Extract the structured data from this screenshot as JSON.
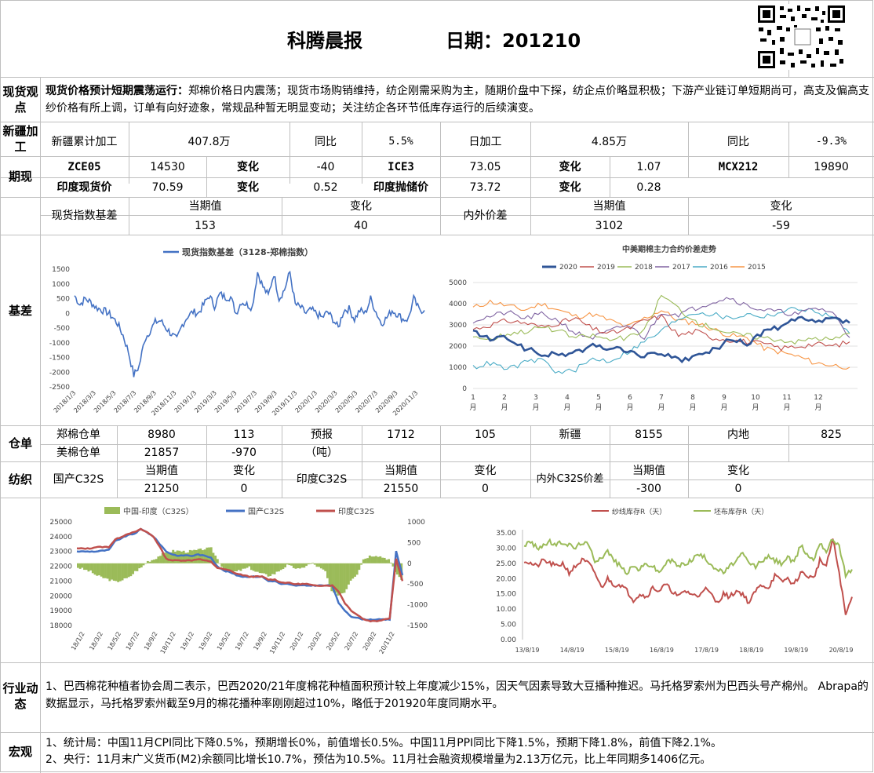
{
  "header": {
    "title": "科腾晨报",
    "date_label": "日期：201210"
  },
  "spot": {
    "label": "现货观点",
    "headline": "现货价格预计短期震荡运行：",
    "text": "郑棉价格日内震荡；现货市场购销维持，纺企刚需采购为主，随期价盘中下探，纺企点价略显积极；下游产业链订单短期尚可，高支及偏高支纱价格有所上调，订单有向好迹象，常规品种暂无明显变动；关注纺企各环节低库存运行的后续演变。"
  },
  "xinjiang": {
    "label": "新疆加工",
    "cum_label": "新疆累计加工",
    "cum_value": "407.8万",
    "yoy_label": "同比",
    "cum_yoy": "5.5%",
    "daily_label": "日加工",
    "daily_value": "4.85万",
    "daily_yoy": "-9.3%"
  },
  "futures": {
    "label": "期现",
    "rows": [
      [
        {
          "n": "ZCE05",
          "v": "14530"
        },
        {
          "n": "变化",
          "v": "-40"
        },
        {
          "n": "ICE3",
          "v": "73.05"
        },
        {
          "n": "变化",
          "v": "1.07"
        },
        {
          "n": "MCX212",
          "v": "19890"
        }
      ],
      [
        {
          "n": "印度现货价",
          "v": "70.59"
        },
        {
          "n": "变化",
          "v": "0.52"
        },
        {
          "n": "印度抛储价",
          "v": "73.72"
        },
        {
          "n": "变化",
          "v": "0.28"
        }
      ]
    ]
  },
  "basis": {
    "label": "基差",
    "index_label": "现货指数基差",
    "cur_label": "当期值",
    "chg_label": "变化",
    "index_cur": "153",
    "index_chg": "40",
    "spread_label": "内外价差",
    "spread_cur": "3102",
    "spread_chg": "-59"
  },
  "warehouse": {
    "label": "仓单",
    "zz_label": "郑棉仓单",
    "zz_value": "8980",
    "zz_chg": "113",
    "forecast_label": "预报",
    "unit": "（吨）",
    "forecast_value": "1712",
    "forecast_chg": "105",
    "xj_label": "新疆",
    "xj_value": "8155",
    "nd_label": "内地",
    "nd_value": "825",
    "us_label": "美棉仓单",
    "us_value": "21857",
    "us_chg": "-970"
  },
  "textile": {
    "label": "纺织",
    "dom_label": "国产C32S",
    "dom_cur": "21250",
    "dom_chg": "0",
    "ind_label": "印度C32S",
    "ind_cur": "21550",
    "ind_chg": "0",
    "diff_label": "内外C32S价差",
    "diff_cur": "-300",
    "diff_chg": "0",
    "cur_label": "当期值",
    "chg_label": "变化"
  },
  "industry": {
    "label": "行业动态",
    "text": "1、巴西棉花种植者协会周二表示，巴西2020/21年度棉花种植面积预计较上年度减少15%，因天气因素导致大豆播种推迟。马托格罗索州为巴西头号产棉州。 Abrapa的数据显示，马托格罗索州截至9月的棉花播种率刚刚超过10%，略低于201920年度同期水平。"
  },
  "macro": {
    "label": "宏观",
    "line1": "1、统计局：中国11月CPI同比下降0.5%，预期增长0%，前值增长0.5%。中国11月PPI同比下降1.5%，预期下降1.8%，前值下降2.1%。",
    "line2": "2、央行：11月末广义货币(M2)余额同比增长10.7%，预估为10.5%。11月社会融资规模增量为2.13万亿元，比上年同期多1406亿元。"
  },
  "chart_data": [
    {
      "type": "line",
      "legend": "现货指数基差（3128-郑棉指数）",
      "yticks": [
        "1500",
        "1000",
        "500",
        "0",
        "-500",
        "-1000",
        "-1500",
        "-2000",
        "-2500"
      ],
      "ylim": [
        -2500,
        1500
      ],
      "xticks": [
        "2018/1/3",
        "2018/3/3",
        "2018/5/3",
        "2018/7/3",
        "2018/9/3",
        "2018/11/3",
        "2019/1/3",
        "2019/3/3",
        "2019/5/3",
        "2019/7/3",
        "2019/9/3",
        "2019/11/3",
        "2020/1/3",
        "2020/3/3",
        "2020/5/3",
        "2020/7/3",
        "2020/9/3",
        "2020/11/3"
      ],
      "color": "#4472c4",
      "values": [
        600,
        300,
        500,
        380,
        200,
        120,
        40,
        -120,
        -350,
        -750,
        -1300,
        -2100,
        -1800,
        -900,
        -600,
        -300,
        -250,
        -500,
        -700,
        -900,
        -400,
        -100,
        50,
        0,
        300,
        600,
        250,
        650,
        550,
        550,
        0,
        400,
        300,
        200,
        1400,
        900,
        600,
        1350,
        500,
        800,
        1400,
        300,
        200,
        0,
        120,
        -20,
        -150,
        50,
        -200,
        -500,
        100,
        150,
        -200,
        100,
        0,
        500,
        50,
        -350,
        -150,
        100,
        -30,
        -200,
        -200,
        500,
        120,
        100
      ]
    },
    {
      "type": "line",
      "title": "中美期棉主力合约价差走势",
      "legend_position": "top",
      "yticks": [
        "5000",
        "4000",
        "3000",
        "2000",
        "1000",
        "0"
      ],
      "ylim": [
        0,
        5000
      ],
      "xticks": [
        "1月",
        "2月",
        "3月",
        "4月",
        "5月",
        "6月",
        "7月",
        "8月",
        "9月",
        "10月",
        "11月",
        "12月"
      ],
      "series": [
        {
          "name": "2020",
          "color": "#2f5597",
          "values": [
            2700,
            2300,
            2400,
            1900,
            1600,
            1600,
            1700,
            2000,
            1900,
            1800,
            1500,
            1700,
            1300,
            1500,
            1800,
            2300,
            2100,
            2700,
            2900,
            3300,
            3100,
            3300,
            3100
          ]
        },
        {
          "name": "2019",
          "color": "#c0504d",
          "values": [
            2800,
            3000,
            3200,
            3100,
            2900,
            3100,
            3300,
            2800,
            2600,
            2800,
            3200,
            3400,
            2500,
            2700,
            2400,
            2300,
            2200,
            2100,
            1900,
            2000,
            2100,
            2000,
            2200
          ]
        },
        {
          "name": "2018",
          "color": "#9bbb59",
          "values": [
            2500,
            2300,
            2600,
            2700,
            2900,
            2700,
            2400,
            2500,
            2300,
            2400,
            2700,
            4400,
            3800,
            3100,
            2900,
            2600,
            2500,
            2400,
            2300,
            2200,
            2400,
            2300,
            2600
          ]
        },
        {
          "name": "2017",
          "color": "#8064a2",
          "values": [
            3200,
            3400,
            3600,
            3300,
            3500,
            3200,
            2600,
            2400,
            2700,
            3000,
            2400,
            3600,
            3500,
            3800,
            4100,
            4300,
            3900,
            3700,
            3600,
            3500,
            3800,
            3600,
            2400
          ]
        },
        {
          "name": "2016",
          "color": "#4bacc6",
          "values": [
            1000,
            1200,
            900,
            1200,
            1400,
            700,
            900,
            1400,
            1300,
            1700,
            2200,
            2700,
            3300,
            3600,
            3500,
            3300,
            3500,
            3400,
            3600,
            3800,
            3600,
            3400,
            2600
          ]
        },
        {
          "name": "2015",
          "color": "#f79646",
          "values": [
            3800,
            4100,
            3900,
            3700,
            4000,
            3700,
            3400,
            3500,
            3200,
            2900,
            3300,
            3700,
            3200,
            3100,
            2800,
            2500,
            2400,
            1900,
            1700,
            1500,
            1200,
            1100,
            1000
          ]
        }
      ]
    },
    {
      "type": "line",
      "series": [
        {
          "name": "中国-印度（C32S）",
          "kind": "bar",
          "color": "#9bbb59",
          "values": [
            -100,
            -150,
            -200,
            -300,
            -350,
            -400,
            -450,
            -400,
            -350,
            -200,
            -100,
            50,
            100,
            200,
            250,
            300,
            300,
            280,
            300,
            320,
            350,
            360,
            100,
            -150,
            -200,
            -200,
            -150,
            -100,
            -200,
            -250,
            -300,
            -250,
            -150,
            -50,
            -100,
            -150,
            -50,
            0,
            -100,
            -200,
            -700,
            -750,
            -700,
            -400,
            -250,
            100,
            180,
            200,
            150,
            100,
            -200,
            -400
          ]
        },
        {
          "name": "国产C32S",
          "kind": "line",
          "color": "#4472c4",
          "values": [
            23000,
            23000,
            23000,
            23000,
            23050,
            23100,
            23700,
            23900,
            24100,
            24200,
            24500,
            24300,
            24000,
            23500,
            23000,
            22800,
            22700,
            22750,
            22700,
            22800,
            22700,
            22600,
            22000,
            21700,
            21600,
            21400,
            21300,
            21300,
            21300,
            21300,
            21000,
            21000,
            20800,
            20800,
            20700,
            20700,
            20700,
            20700,
            20700,
            20700,
            20700,
            19500,
            19000,
            18600,
            18500,
            18400,
            18400,
            18400,
            18400,
            18400,
            23000,
            21400
          ]
        },
        {
          "name": "印度C32S",
          "kind": "line",
          "color": "#c0504d",
          "values": [
            23200,
            23200,
            23200,
            23300,
            23300,
            23300,
            23800,
            24000,
            24200,
            24300,
            24500,
            24300,
            24000,
            23300,
            22500,
            22400,
            22400,
            22400,
            22400,
            22500,
            22400,
            22300,
            21900,
            21800,
            21700,
            21500,
            21400,
            21300,
            21300,
            21300,
            21100,
            21100,
            20900,
            20900,
            20800,
            20800,
            20800,
            20700,
            20700,
            20700,
            20700,
            20300,
            19500,
            19000,
            18700,
            18400,
            18300,
            18300,
            18400,
            18500,
            22500,
            21000
          ]
        }
      ],
      "yticks_left": [
        "25000",
        "24000",
        "23000",
        "22000",
        "21000",
        "20000",
        "19000",
        "18000"
      ],
      "yticks_right": [
        "1000",
        "500",
        "0",
        "-500",
        "-1000",
        "-1500"
      ],
      "ylim_left": [
        18000,
        25000
      ],
      "ylim_right": [
        -1500,
        1000
      ],
      "xticks": [
        "18/1/2",
        "18/3/2",
        "18/5/2",
        "18/7/2",
        "18/9/2",
        "18/11/2",
        "19/1/2",
        "19/3/2",
        "19/5/2",
        "19/7/2",
        "19/9/2",
        "19/11/2",
        "20/1/2",
        "20/3/2",
        "20/5/2",
        "20/7/2",
        "20/9/2",
        "20/11/2"
      ]
    },
    {
      "type": "line",
      "legend_position": "top",
      "yticks": [
        "35.00",
        "30.00",
        "25.00",
        "20.00",
        "15.00",
        "10.00",
        "5.00",
        "0.00"
      ],
      "ylim": [
        0,
        35
      ],
      "xticks": [
        "13/8/19",
        "14/8/19",
        "15/8/19",
        "16/8/19",
        "17/8/19",
        "18/8/19",
        "19/8/19",
        "20/8/19"
      ],
      "series": [
        {
          "name": "纱线库存R（天）",
          "color": "#c0504d",
          "values": [
            26,
            25,
            24,
            26,
            25,
            24,
            25,
            22,
            24,
            26,
            25,
            22,
            17,
            20,
            18,
            18,
            16,
            13,
            15,
            14,
            17,
            16,
            18,
            16,
            14,
            16,
            15,
            14,
            17,
            15,
            12,
            15,
            14,
            16,
            15,
            12,
            16,
            18,
            17,
            21,
            19,
            20,
            18,
            22,
            21,
            20,
            26,
            24,
            33,
            22,
            8,
            14
          ]
        },
        {
          "name": "坯布库存R（天）",
          "color": "#9bbb59",
          "values": [
            31,
            32,
            30,
            31,
            32,
            31,
            32,
            31,
            30,
            32,
            31,
            26,
            27,
            29,
            26,
            24,
            22,
            24,
            23,
            25,
            24,
            22,
            25,
            26,
            24,
            25,
            26,
            28,
            27,
            25,
            23,
            22,
            24,
            26,
            28,
            25,
            24,
            26,
            27,
            26,
            25,
            27,
            25,
            31,
            28,
            26,
            32,
            29,
            33,
            31,
            21,
            23
          ]
        }
      ]
    }
  ]
}
